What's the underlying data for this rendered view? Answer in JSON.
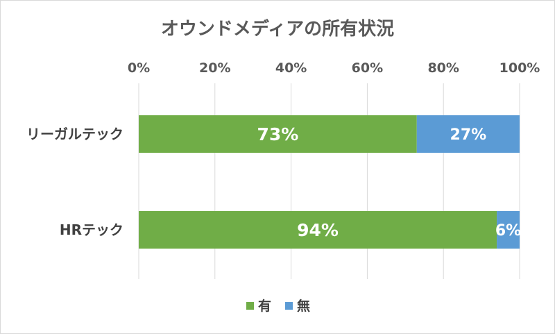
{
  "chart_data": {
    "type": "bar",
    "orientation": "horizontal",
    "stacked": true,
    "title": "オウンドメディアの所有状況",
    "categories": [
      "リーガルテック",
      "HRテック"
    ],
    "series": [
      {
        "name": "有",
        "values": [
          73,
          94
        ],
        "labels": [
          "73%",
          "94%"
        ],
        "color": "#70ad47"
      },
      {
        "name": "無",
        "values": [
          27,
          6
        ],
        "labels": [
          "27%",
          "6%"
        ],
        "color": "#5b9bd5"
      }
    ],
    "xaxis": {
      "position": "top",
      "range": [
        0,
        100
      ],
      "ticks": [
        "0%",
        "20%",
        "40%",
        "60%",
        "80%",
        "100%"
      ]
    },
    "grid": true,
    "legend": "bottom"
  }
}
